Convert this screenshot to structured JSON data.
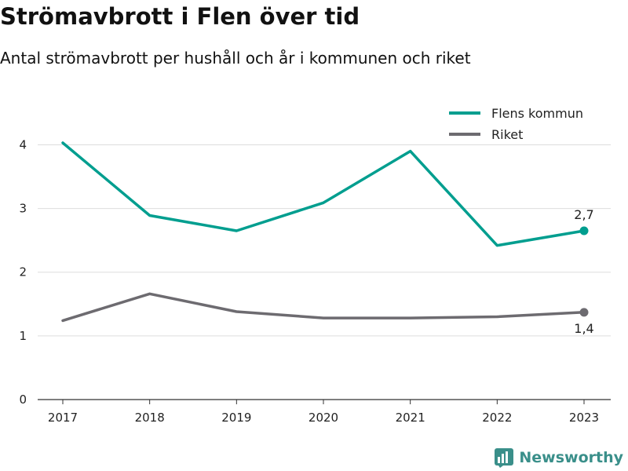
{
  "header": {
    "title": "Strömavbrott i Flen över tid",
    "subtitle": "Antal strömavbrott per hushåll och år i kommunen och riket"
  },
  "brand": {
    "name": "Newsworthy",
    "icon": "newsworthy-logo-icon",
    "color": "#3a8f8a"
  },
  "chart_data": {
    "type": "line",
    "title": "Strömavbrott i Flen över tid",
    "subtitle": "Antal strömavbrott per hushåll och år i kommunen och riket",
    "xlabel": "",
    "ylabel": "",
    "categories": [
      "2017",
      "2018",
      "2019",
      "2020",
      "2021",
      "2022",
      "2023"
    ],
    "ylim": [
      0,
      4.4
    ],
    "yticks": [
      0,
      1,
      2,
      3,
      4
    ],
    "grid": true,
    "legend_position": "top-right",
    "series": [
      {
        "name": "Flens kommun",
        "color": "#009e8f",
        "values": [
          4.03,
          2.89,
          2.65,
          3.09,
          3.9,
          2.42,
          2.65
        ],
        "end_label": "2,7"
      },
      {
        "name": "Riket",
        "color": "#6d6b70",
        "values": [
          1.24,
          1.66,
          1.38,
          1.28,
          1.28,
          1.3,
          1.37
        ],
        "end_label": "1,4"
      }
    ]
  }
}
